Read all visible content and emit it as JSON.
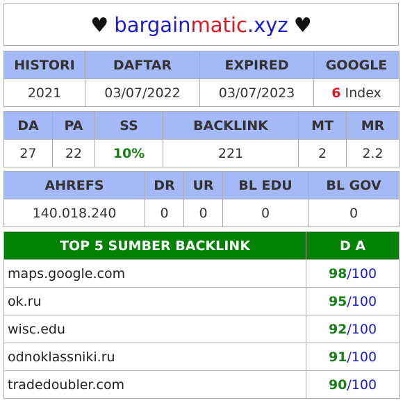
{
  "title": {
    "heart_left": "♥",
    "part1": "bargain",
    "part2": "matic",
    "part3": ".xyz",
    "heart_right": "♥"
  },
  "table1": {
    "headers": [
      "HISTORI",
      "DAFTAR",
      "EXPIRED",
      "GOOGLE"
    ],
    "histori": "2021",
    "daftar": "03/07/2022",
    "expired": "03/07/2023",
    "google_count": "6",
    "google_label": "Index"
  },
  "table2": {
    "headers": [
      "DA",
      "PA",
      "SS",
      "BACKLINK",
      "MT",
      "MR"
    ],
    "values": [
      "27",
      "22",
      "10%",
      "221",
      "2",
      "2.2"
    ]
  },
  "table3": {
    "headers": [
      "AHREFS",
      "DR",
      "UR",
      "BL EDU",
      "BL GOV"
    ],
    "values": [
      "140.018.240",
      "0",
      "0",
      "0",
      "0"
    ]
  },
  "top5": {
    "header_site": "TOP 5 SUMBER BACKLINK",
    "header_da": "D A",
    "rows": [
      {
        "site": "maps.google.com",
        "score": "98",
        "max": "/100"
      },
      {
        "site": "ok.ru",
        "score": "95",
        "max": "/100"
      },
      {
        "site": "wisc.edu",
        "score": "92",
        "max": "/100"
      },
      {
        "site": "odnoklassniki.ru",
        "score": "91",
        "max": "/100"
      },
      {
        "site": "tradedoubler.com",
        "score": "90",
        "max": "/100"
      }
    ]
  }
}
